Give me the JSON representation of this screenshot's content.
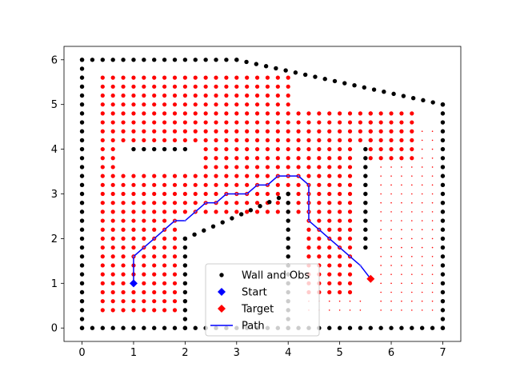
{
  "chart_data": {
    "type": "scatter",
    "title": "",
    "xlabel": "",
    "ylabel": "",
    "xlim": [
      -0.35,
      7.35
    ],
    "ylim": [
      -0.3,
      6.3
    ],
    "xticks": [
      0,
      1,
      2,
      3,
      4,
      5,
      6,
      7
    ],
    "yticks": [
      0,
      1,
      2,
      3,
      4,
      5,
      6
    ],
    "grid": false,
    "legend_position": "lower center",
    "series": [
      {
        "name": "Wall and Obs",
        "marker": "dot",
        "color": "#000000",
        "segments": [
          {
            "from": [
              0,
              0
            ],
            "to": [
              0,
              6
            ],
            "step": 0.2
          },
          {
            "from": [
              0,
              6
            ],
            "to": [
              3,
              6
            ],
            "step": 0.2
          },
          {
            "from": [
              3,
              6
            ],
            "to": [
              7,
              5
            ],
            "step": 0.2
          },
          {
            "from": [
              7,
              5
            ],
            "to": [
              7,
              0
            ],
            "step": 0.2
          },
          {
            "from": [
              0,
              0
            ],
            "to": [
              7,
              0
            ],
            "step": 0.2
          },
          {
            "from": [
              2,
              0
            ],
            "to": [
              2,
              2
            ],
            "step": 0.2
          },
          {
            "from": [
              2,
              2
            ],
            "to": [
              4,
              3
            ],
            "step": 0.2
          },
          {
            "from": [
              4,
              0
            ],
            "to": [
              4,
              3
            ],
            "step": 0.2
          },
          {
            "from": [
              1,
              4
            ],
            "to": [
              2,
              4
            ],
            "step": 0.2
          },
          {
            "from": [
              5.5,
              1.8
            ],
            "to": [
              5.5,
              4
            ],
            "step": 0.2
          }
        ]
      },
      {
        "name": "Start",
        "marker": "diamond",
        "color": "#0000ff",
        "points": [
          [
            1,
            1
          ]
        ]
      },
      {
        "name": "Target",
        "marker": "diamond",
        "color": "#ff0000",
        "points": [
          [
            5.6,
            1.1
          ]
        ]
      },
      {
        "name": "Path",
        "marker": "line",
        "color": "#0000ff",
        "points": [
          [
            1,
            1
          ],
          [
            1,
            1.6
          ],
          [
            1.2,
            1.8
          ],
          [
            1.4,
            2.0
          ],
          [
            1.6,
            2.2
          ],
          [
            1.8,
            2.4
          ],
          [
            2.0,
            2.4
          ],
          [
            2.2,
            2.6
          ],
          [
            2.4,
            2.8
          ],
          [
            2.6,
            2.8
          ],
          [
            2.8,
            3.0
          ],
          [
            3.0,
            3.0
          ],
          [
            3.2,
            3.0
          ],
          [
            3.4,
            3.2
          ],
          [
            3.6,
            3.2
          ],
          [
            3.8,
            3.4
          ],
          [
            4.0,
            3.4
          ],
          [
            4.2,
            3.4
          ],
          [
            4.4,
            3.2
          ],
          [
            4.4,
            3.0
          ],
          [
            4.4,
            2.8
          ],
          [
            4.4,
            2.6
          ],
          [
            4.4,
            2.4
          ],
          [
            4.6,
            2.2
          ],
          [
            4.8,
            2.0
          ],
          [
            5.0,
            1.8
          ],
          [
            5.2,
            1.6
          ],
          [
            5.4,
            1.4
          ],
          [
            5.6,
            1.1
          ]
        ]
      }
    ],
    "explored_region": {
      "color": "#ff0000",
      "marker": "dot",
      "step": 0.2,
      "cells": [
        {
          "x_from": 0.4,
          "x_to": 4.0,
          "y_from": 5.0,
          "y_to": 5.6
        },
        {
          "x_from": 0.4,
          "x_to": 5.6,
          "y_from": 4.2,
          "y_to": 4.8
        },
        {
          "x_from": 0.4,
          "x_to": 0.6,
          "y_from": 3.6,
          "y_to": 4.0
        },
        {
          "x_from": 2.4,
          "x_to": 5.2,
          "y_from": 3.6,
          "y_to": 4.0
        },
        {
          "x_from": 0.4,
          "x_to": 5.2,
          "y_from": 2.6,
          "y_to": 3.4
        },
        {
          "x_from": 0.4,
          "x_to": 1.8,
          "y_from": 0.4,
          "y_to": 2.4
        },
        {
          "x_from": 4.4,
          "x_to": 5.2,
          "y_from": 0.8,
          "y_to": 2.4
        },
        {
          "x_from": 5.6,
          "x_to": 6.4,
          "y_from": 3.8,
          "y_to": 4.8
        }
      ]
    },
    "unexplored_region": {
      "color": "#ff0000",
      "marker": "tiny",
      "step": 0.2,
      "cells": [
        {
          "x_from": 5.8,
          "x_to": 6.8,
          "y_from": 0.4,
          "y_to": 3.6
        },
        {
          "x_from": 4.4,
          "x_to": 5.4,
          "y_from": 0.4,
          "y_to": 0.6
        },
        {
          "x_from": 6.6,
          "x_to": 6.8,
          "y_from": 3.8,
          "y_to": 4.4
        }
      ]
    }
  }
}
